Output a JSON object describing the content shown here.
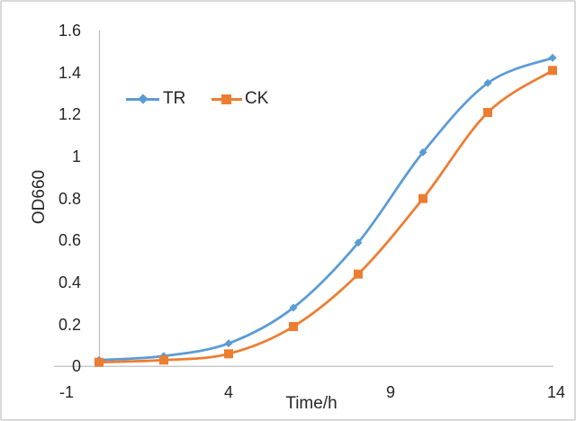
{
  "chart_data": {
    "type": "line",
    "title": "",
    "xlabel": "Time/h",
    "ylabel": "OD660",
    "x": [
      0,
      2,
      4,
      6,
      8,
      10,
      12,
      14
    ],
    "series": [
      {
        "name": "TR",
        "color": "#5B9BD5",
        "marker": "diamond",
        "values": [
          0.03,
          0.05,
          0.11,
          0.28,
          0.59,
          1.02,
          1.35,
          1.47
        ]
      },
      {
        "name": "CK",
        "color": "#ED7D31",
        "marker": "square",
        "values": [
          0.02,
          0.03,
          0.06,
          0.19,
          0.44,
          0.8,
          1.21,
          1.41
        ]
      }
    ],
    "xlim": [
      -1,
      14
    ],
    "ylim": [
      0,
      1.6
    ],
    "x_ticks": [
      "-1",
      "4",
      "9",
      "14"
    ],
    "x_tick_values": [
      -1,
      4,
      9,
      14
    ],
    "y_ticks": [
      "1.6",
      "1.4",
      "1.2",
      "1",
      "0.8",
      "0.6",
      "0.4",
      "0.2",
      "0"
    ],
    "y_tick_values": [
      1.6,
      1.4,
      1.2,
      1.0,
      0.8,
      0.6,
      0.4,
      0.2,
      0
    ],
    "grid": false,
    "smooth_lines": true,
    "legend_position": "top-inside",
    "axis_color": "#BFBFBF",
    "text_color": "#262626",
    "background_color": "#FFFFFF",
    "frame_color": "#D9D9D9"
  }
}
